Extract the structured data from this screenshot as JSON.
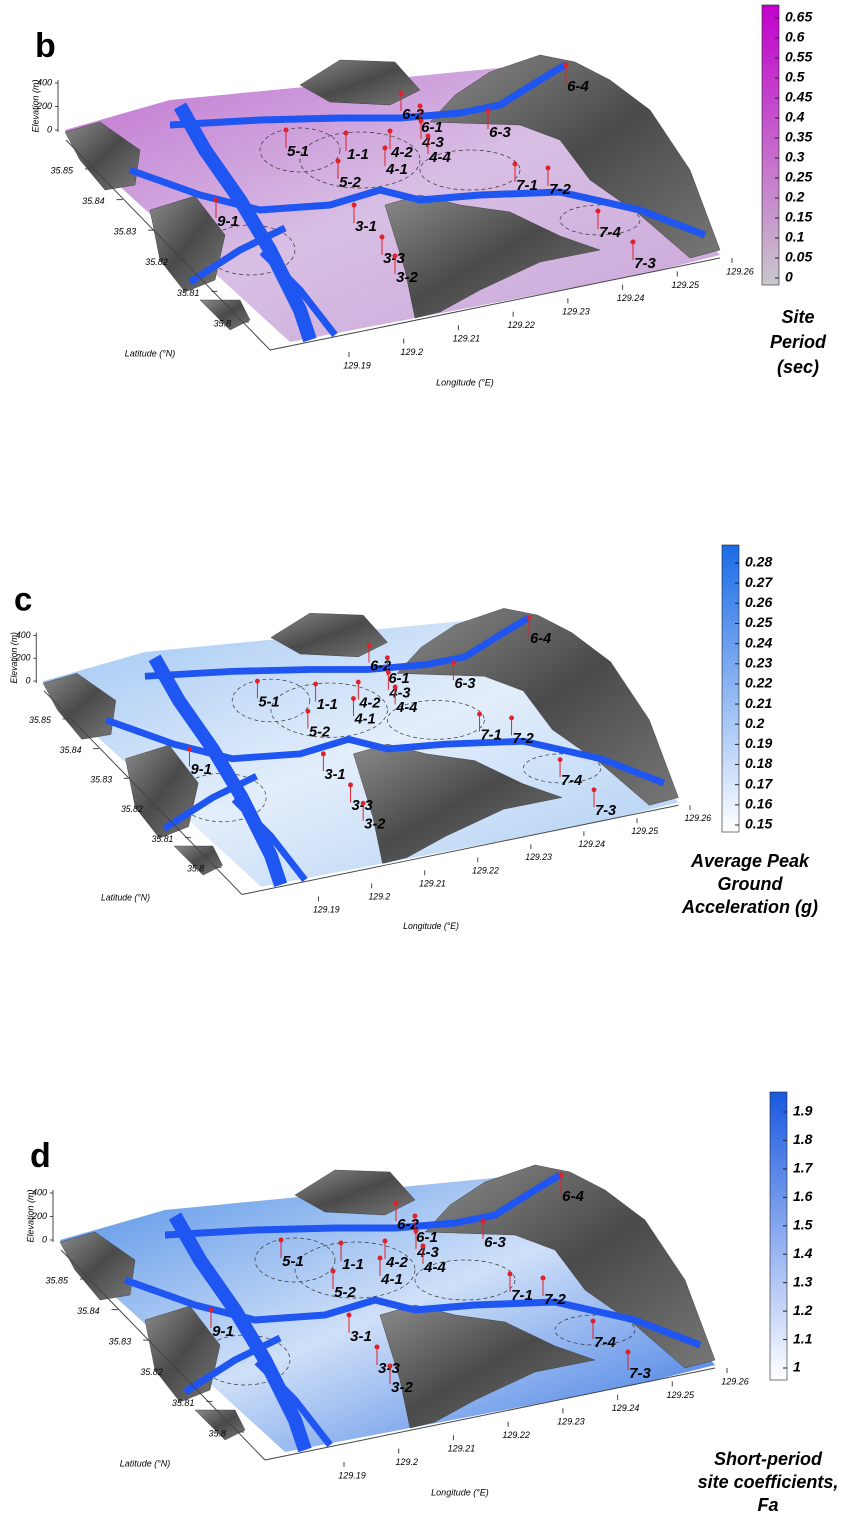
{
  "panels": [
    {
      "label": "b",
      "colorbar": {
        "ticks": [
          0.65,
          0.6,
          0.55,
          0.5,
          0.45,
          0.4,
          0.35,
          0.3,
          0.25,
          0.2,
          0.15,
          0.1,
          0.05,
          0
        ],
        "title": [
          "Site",
          "Period",
          "(sec)"
        ]
      },
      "elevation_label": "Elevation (m)",
      "elevation_ticks": [
        400,
        200,
        0
      ],
      "latitude_label": "Latitude (°N)",
      "latitude_ticks": [
        35.85,
        35.84,
        35.83,
        35.82,
        35.81,
        35.8
      ],
      "longitude_label": "Longitude (°E)",
      "longitude_ticks": [
        129.19,
        129.2,
        129.21,
        129.22,
        129.23,
        129.24,
        129.25,
        129.26
      ],
      "sites": [
        "6-4",
        "6-2",
        "6-1",
        "6-3",
        "5-1",
        "1-1",
        "4-2",
        "4-3",
        "4-4",
        "4-1",
        "5-2",
        "7-1",
        "7-2",
        "9-1",
        "3-1",
        "7-4",
        "3-3",
        "3-2",
        "7-3"
      ]
    },
    {
      "label": "c",
      "colorbar": {
        "ticks": [
          0.28,
          0.27,
          0.26,
          0.25,
          0.24,
          0.23,
          0.22,
          0.21,
          0.2,
          0.19,
          0.18,
          0.17,
          0.16,
          0.15
        ],
        "title": [
          "Average Peak",
          "Ground",
          "Acceleration (g)"
        ]
      },
      "elevation_label": "Elevation (m)",
      "elevation_ticks": [
        400,
        200,
        0
      ],
      "latitude_label": "Latitude (°N)",
      "latitude_ticks": [
        35.85,
        35.84,
        35.83,
        35.82,
        35.81,
        35.8
      ],
      "longitude_label": "Longitude (°E)",
      "longitude_ticks": [
        129.19,
        129.2,
        129.21,
        129.22,
        129.23,
        129.24,
        129.25,
        129.26
      ],
      "sites": [
        "6-4",
        "6-2",
        "6-1",
        "6-3",
        "5-1",
        "1-1",
        "4-2",
        "4-3",
        "4-4",
        "4-1",
        "5-2",
        "7-1",
        "7-2",
        "9-1",
        "3-1",
        "7-4",
        "3-3",
        "3-2",
        "7-3"
      ]
    },
    {
      "label": "d",
      "colorbar": {
        "ticks": [
          1.9,
          1.8,
          1.7,
          1.6,
          1.5,
          1.4,
          1.3,
          1.2,
          1.1,
          1
        ],
        "title": [
          "Short-period",
          "site coefficients,",
          "Fa"
        ]
      },
      "elevation_label": "Elevation (m)",
      "elevation_ticks": [
        400,
        200,
        0
      ],
      "latitude_label": "Latitude (°N)",
      "latitude_ticks": [
        35.85,
        35.84,
        35.83,
        35.82,
        35.81,
        35.8
      ],
      "longitude_label": "Longitude (°E)",
      "longitude_ticks": [
        129.19,
        129.2,
        129.21,
        129.22,
        129.23,
        129.24,
        129.25,
        129.26
      ],
      "sites": [
        "6-4",
        "6-2",
        "6-1",
        "6-3",
        "5-1",
        "1-1",
        "4-2",
        "4-3",
        "4-4",
        "4-1",
        "5-2",
        "7-1",
        "7-2",
        "9-1",
        "3-1",
        "7-4",
        "3-3",
        "3-2",
        "7-3"
      ]
    }
  ]
}
